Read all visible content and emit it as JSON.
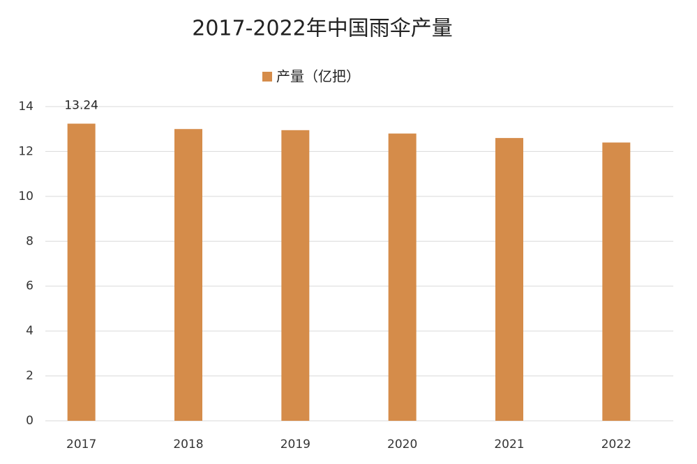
{
  "chart_data": {
    "type": "bar",
    "title": "2017-2022年中国雨伞产量",
    "categories": [
      "2017",
      "2018",
      "2019",
      "2020",
      "2021",
      "2022"
    ],
    "series": [
      {
        "name": "产量（亿把）",
        "color": "#d58c4a",
        "values": [
          13.24,
          13.0,
          12.95,
          12.8,
          12.6,
          12.4
        ]
      }
    ],
    "ylim": [
      0,
      14
    ],
    "yticks": [
      0,
      2,
      4,
      6,
      8,
      10,
      12,
      14
    ],
    "grid": true,
    "legend": "top"
  }
}
